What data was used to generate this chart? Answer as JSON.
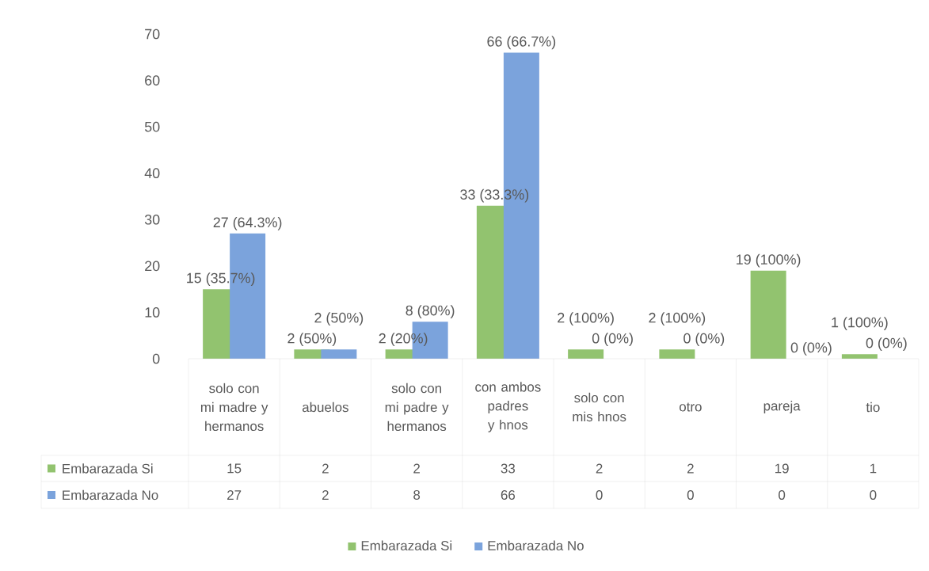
{
  "chart_data": {
    "type": "bar",
    "categories": [
      "solo con mi madre y hermanos",
      "abuelos",
      "solo con mi padre y hermanos",
      "con ambos padres y hnos",
      "solo con mis hnos",
      "otro",
      "pareja",
      "tio"
    ],
    "series": [
      {
        "name": "Embarazada Si",
        "color": "#92c36f",
        "values": [
          15,
          2,
          2,
          33,
          2,
          2,
          19,
          1
        ]
      },
      {
        "name": "Embarazada No",
        "color": "#7ba3dc",
        "values": [
          27,
          2,
          8,
          66,
          0,
          0,
          0,
          0
        ]
      }
    ],
    "annotations": [
      {
        "text": "15 (35.7%)",
        "x": "solo con mi madre y hermanos",
        "y": 15
      },
      {
        "text": "27 (64.3%)",
        "x": "solo con mi madre y hermanos",
        "y": 27
      },
      {
        "text": "2 (50%)",
        "x": "abuelos",
        "y": 2
      },
      {
        "text": "2 (50%)",
        "x": "abuelos",
        "y": 2
      },
      {
        "text": "2 (20%)",
        "x": "solo con mi padre y hermanos",
        "y": 2
      },
      {
        "text": "8 (80%)",
        "x": "solo con mi padre y hermanos",
        "y": 8
      },
      {
        "text": "33 (33.3%)",
        "x": "con ambos padres y hnos",
        "y": 33
      },
      {
        "text": "66 (66.7%)",
        "x": "con ambos padres y hnos",
        "y": 66
      },
      {
        "text": "2 (100%)",
        "x": "solo con mis hnos",
        "y": 2
      },
      {
        "text": "0 (0%)",
        "x": "solo con mis hnos",
        "y": 0
      },
      {
        "text": "2 (100%)",
        "x": "otro",
        "y": 2
      },
      {
        "text": "0 (0%)",
        "x": "otro",
        "y": 0
      },
      {
        "text": "19 (100%)",
        "x": "pareja",
        "y": 19
      },
      {
        "text": "0 (0%)",
        "x": "pareja",
        "y": 0
      },
      {
        "text": "1 (100%)",
        "x": "tio",
        "y": 1
      },
      {
        "text": "0 (0%)",
        "x": "tio",
        "y": 0
      }
    ],
    "ylim": [
      0,
      70
    ],
    "yticks": [
      0,
      10,
      20,
      30,
      40,
      50,
      60,
      70
    ],
    "grid": false,
    "data_labels": true,
    "legend": "bottom"
  }
}
